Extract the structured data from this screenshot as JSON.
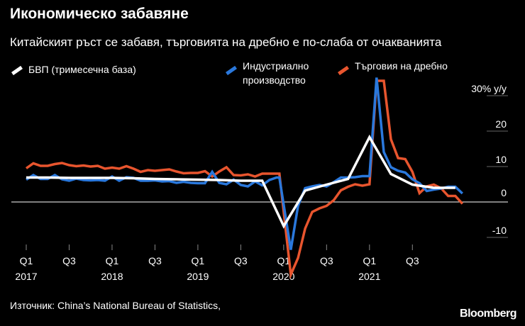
{
  "header": {
    "title": "Икономическо забавяне",
    "subtitle": "Китайският ръст се забавя, търговията на дребно е по-слаба от очакванията"
  },
  "footer": {
    "source": "Източник: China’s National Bureau of Statistics,",
    "brand": "Bloomberg"
  },
  "chart_data": {
    "type": "line",
    "title": "Икономическо забавяне",
    "subtitle": "Китайският ръст се забавя, търговията на дребно е по-слаба от очакванията",
    "unit_label": "y/y",
    "ylim": [
      -12,
      33
    ],
    "y_ticks": [
      {
        "value": 30,
        "label": "30%"
      },
      {
        "value": 20,
        "label": "20"
      },
      {
        "value": 10,
        "label": "10"
      },
      {
        "value": 0,
        "label": "0"
      },
      {
        "value": -10,
        "label": "-10"
      }
    ],
    "x_range": [
      2017.0,
      2022.25
    ],
    "x_ticks": [
      {
        "pos": 2017.0,
        "label": "Q1",
        "year": "2017"
      },
      {
        "pos": 2017.5,
        "label": "Q3",
        "year": ""
      },
      {
        "pos": 2018.0,
        "label": "Q1",
        "year": "2018"
      },
      {
        "pos": 2018.5,
        "label": "Q3",
        "year": ""
      },
      {
        "pos": 2019.0,
        "label": "Q1",
        "year": "2019"
      },
      {
        "pos": 2019.5,
        "label": "Q3",
        "year": ""
      },
      {
        "pos": 2020.0,
        "label": "Q1",
        "year": "2020"
      },
      {
        "pos": 2020.5,
        "label": "Q3",
        "year": ""
      },
      {
        "pos": 2021.0,
        "label": "Q1",
        "year": "2021"
      },
      {
        "pos": 2021.5,
        "label": "Q3",
        "year": ""
      }
    ],
    "series": [
      {
        "name": "Търговия на дребно",
        "color": "#e8552e",
        "x": [
          2017.0,
          2017.083,
          2017.167,
          2017.25,
          2017.333,
          2017.417,
          2017.5,
          2017.583,
          2017.667,
          2017.75,
          2017.833,
          2017.917,
          2018.0,
          2018.083,
          2018.167,
          2018.25,
          2018.333,
          2018.417,
          2018.5,
          2018.583,
          2018.667,
          2018.75,
          2018.833,
          2018.917,
          2019.0,
          2019.083,
          2019.167,
          2019.25,
          2019.333,
          2019.417,
          2019.5,
          2019.583,
          2019.667,
          2019.75,
          2019.833,
          2019.917,
          2019.95,
          2020.083,
          2020.167,
          2020.25,
          2020.333,
          2020.417,
          2020.5,
          2020.583,
          2020.667,
          2020.75,
          2020.833,
          2020.917,
          2021.0,
          2021.083,
          2021.167,
          2021.25,
          2021.333,
          2021.417,
          2021.5,
          2021.583,
          2021.667,
          2021.75,
          2021.833,
          2021.917,
          2022.0,
          2022.083
        ],
        "values": [
          9.5,
          10.9,
          10.2,
          10.2,
          10.7,
          11.0,
          10.4,
          10.1,
          10.3,
          10.0,
          10.2,
          9.4,
          9.7,
          9.4,
          10.1,
          9.4,
          8.5,
          9.0,
          8.8,
          9.0,
          9.2,
          8.6,
          8.1,
          8.2,
          8.2,
          8.7,
          7.2,
          8.6,
          9.8,
          7.6,
          7.5,
          7.8,
          7.2,
          8.0,
          8.0,
          8.0,
          8.0,
          -20.5,
          -15.8,
          -7.5,
          -2.8,
          -1.8,
          -1.1,
          0.5,
          3.3,
          4.3,
          5.0,
          4.6,
          5.0,
          34.2,
          34.2,
          17.7,
          12.4,
          12.1,
          8.5,
          2.5,
          4.4,
          4.9,
          3.9,
          1.7,
          1.7,
          -0.5
        ]
      },
      {
        "name": "Индустриално производство",
        "color": "#2a78dc",
        "x": [
          2017.0,
          2017.083,
          2017.167,
          2017.25,
          2017.333,
          2017.417,
          2017.5,
          2017.583,
          2017.667,
          2017.75,
          2017.833,
          2017.917,
          2018.0,
          2018.083,
          2018.167,
          2018.25,
          2018.333,
          2018.417,
          2018.5,
          2018.583,
          2018.667,
          2018.75,
          2018.833,
          2018.917,
          2019.0,
          2019.083,
          2019.167,
          2019.25,
          2019.333,
          2019.417,
          2019.5,
          2019.583,
          2019.667,
          2019.75,
          2019.833,
          2019.917,
          2019.95,
          2020.083,
          2020.167,
          2020.25,
          2020.333,
          2020.417,
          2020.5,
          2020.583,
          2020.667,
          2020.75,
          2020.833,
          2020.917,
          2021.0,
          2021.083,
          2021.167,
          2021.25,
          2021.333,
          2021.417,
          2021.5,
          2021.583,
          2021.667,
          2021.75,
          2021.833,
          2021.917,
          2022.0,
          2022.083
        ],
        "values": [
          6.3,
          7.6,
          6.5,
          6.5,
          7.6,
          6.4,
          6.0,
          6.6,
          6.2,
          6.1,
          6.2,
          6.0,
          7.2,
          6.0,
          7.0,
          6.8,
          6.0,
          6.0,
          6.1,
          5.8,
          5.9,
          5.4,
          5.7,
          5.4,
          5.3,
          5.3,
          8.5,
          5.4,
          5.0,
          6.3,
          4.8,
          4.4,
          5.8,
          4.7,
          6.2,
          6.9,
          6.9,
          -13.5,
          -1.1,
          3.9,
          4.4,
          4.8,
          4.4,
          5.6,
          6.9,
          6.9,
          7.0,
          7.3,
          7.3,
          35.1,
          14.1,
          9.8,
          8.8,
          8.3,
          6.4,
          5.3,
          3.1,
          3.5,
          3.8,
          4.3,
          4.3,
          2.4
        ]
      },
      {
        "name": "БВП (тримесечна база)",
        "color": "#ffffff",
        "x": [
          2017.0,
          2017.25,
          2017.5,
          2017.75,
          2018.0,
          2018.25,
          2018.5,
          2018.75,
          2019.0,
          2019.25,
          2019.5,
          2019.75,
          2020.0,
          2020.25,
          2020.5,
          2020.75,
          2021.0,
          2021.25,
          2021.5,
          2021.75,
          2022.0
        ],
        "values": [
          6.9,
          6.9,
          6.8,
          6.8,
          6.8,
          6.7,
          6.5,
          6.4,
          6.3,
          6.2,
          6.0,
          6.0,
          -6.8,
          3.2,
          4.9,
          6.5,
          18.3,
          7.9,
          4.9,
          4.0,
          4.0
        ]
      }
    ]
  }
}
